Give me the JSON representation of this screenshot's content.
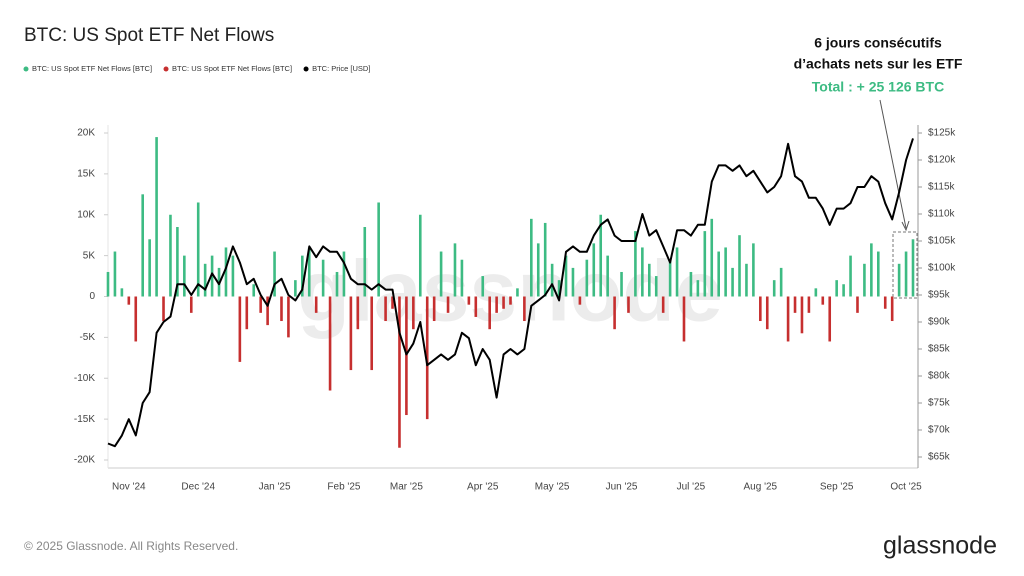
{
  "chart_data": {
    "type": "bar",
    "title": "BTC: US Spot ETF Net Flows",
    "annotation": [
      "6 jours consécutifs",
      "d’achats nets sur les ETF",
      "Total : + 25 126 BTC"
    ],
    "watermark": "glassnode",
    "footer": "© 2025 Glassnode. All Rights Reserved.",
    "logo": "glassnode",
    "legend_position": "top-left",
    "grid": false,
    "categories": [
      null,
      null,
      null,
      "Nov '24",
      null,
      null,
      null,
      null,
      null,
      null,
      null,
      null,
      null,
      "Dec '24",
      null,
      null,
      null,
      null,
      null,
      null,
      null,
      null,
      null,
      null,
      "Jan '25",
      null,
      null,
      null,
      null,
      null,
      null,
      null,
      null,
      null,
      "Feb '25",
      null,
      null,
      null,
      null,
      null,
      null,
      null,
      null,
      "Mar '25",
      null,
      null,
      null,
      null,
      null,
      null,
      null,
      null,
      null,
      null,
      "Apr '25",
      null,
      null,
      null,
      null,
      null,
      null,
      null,
      null,
      null,
      "May '25",
      null,
      null,
      null,
      null,
      null,
      null,
      null,
      null,
      null,
      "Jun '25",
      null,
      null,
      null,
      null,
      null,
      null,
      null,
      null,
      null,
      "Jul '25",
      null,
      null,
      null,
      null,
      null,
      null,
      null,
      null,
      null,
      "Aug '25",
      null,
      null,
      null,
      null,
      null,
      null,
      null,
      null,
      null,
      null,
      "Sep '25",
      null,
      null,
      null,
      null,
      null,
      null,
      null,
      null,
      null,
      "Oct '25",
      null
    ],
    "series": [
      {
        "name": "BTC: US Spot ETF Net Flows [BTC]",
        "color": "#3dbb83",
        "values": [
          3,
          5.5,
          1,
          null,
          null,
          12.5,
          7,
          19.5,
          null,
          10,
          8.5,
          5,
          null,
          11.5,
          4,
          5,
          3.5,
          6,
          5,
          null,
          null,
          1.5,
          null,
          null,
          5.5,
          null,
          null,
          2,
          5,
          6,
          null,
          4.5,
          null,
          3,
          5.5,
          null,
          null,
          8.5,
          null,
          11.5,
          null,
          null,
          null,
          null,
          null,
          10,
          null,
          null,
          5.5,
          null,
          6.5,
          4.5,
          null,
          null,
          2.5,
          null,
          null,
          null,
          null,
          1,
          null,
          9.5,
          6.5,
          9,
          4,
          2,
          5,
          3.5,
          null,
          4.5,
          6.5,
          10,
          5,
          null,
          3,
          null,
          8,
          6,
          4,
          2.5,
          null,
          4.5,
          6,
          null,
          3,
          2,
          8,
          9.5,
          5.5,
          6,
          3.5,
          7.5,
          4,
          6.5,
          null,
          null,
          2,
          3.5,
          null,
          null,
          null,
          null,
          1,
          null,
          null,
          2,
          1.5,
          5,
          null,
          4,
          6.5,
          5.5,
          null,
          null,
          4,
          5.5,
          7
        ]
      },
      {
        "name": "BTC: US Spot ETF Net Flows [BTC]",
        "color": "#c62f2f",
        "values": [
          null,
          null,
          null,
          -1,
          -5.5,
          null,
          null,
          null,
          -3,
          null,
          null,
          null,
          -2,
          null,
          null,
          null,
          null,
          null,
          null,
          -8,
          -4,
          null,
          -2,
          -3.5,
          null,
          -3,
          -5,
          null,
          null,
          null,
          -2,
          null,
          -11.5,
          null,
          null,
          -9,
          -4,
          null,
          -9,
          null,
          -3,
          -1.5,
          -18.5,
          -14.5,
          -4,
          null,
          -15,
          -3,
          null,
          -2,
          null,
          null,
          -1,
          -2.5,
          null,
          -4,
          -2,
          -1.5,
          -1,
          null,
          -3,
          null,
          null,
          null,
          null,
          null,
          null,
          null,
          -1,
          null,
          null,
          null,
          null,
          -4,
          null,
          -2,
          null,
          null,
          null,
          null,
          -2,
          null,
          null,
          -5.5,
          null,
          null,
          null,
          null,
          null,
          null,
          null,
          null,
          null,
          null,
          -3,
          -4,
          null,
          null,
          -5.5,
          -2,
          -4.5,
          -2,
          null,
          -1,
          -5.5,
          null,
          null,
          null,
          -2,
          null,
          null,
          null,
          -1.5,
          -3,
          null,
          null,
          null
        ]
      },
      {
        "name": "BTC: Price [USD]",
        "color": "#000000",
        "axis": "y2",
        "values": [
          67.5,
          67,
          69,
          72,
          69,
          75,
          77,
          88,
          90,
          91,
          97,
          97,
          95,
          97,
          96,
          99,
          97,
          100,
          104,
          101,
          97,
          98,
          95,
          93,
          97,
          98,
          95,
          94,
          96,
          104,
          102,
          104,
          103,
          103,
          101,
          98,
          97,
          97,
          96,
          97,
          96,
          96,
          88,
          84,
          86,
          90,
          82,
          83,
          84,
          83,
          84,
          88,
          87,
          82,
          85,
          83,
          76,
          84,
          85,
          84,
          85,
          93,
          94,
          95,
          97,
          94,
          103,
          104,
          103,
          103,
          106,
          108,
          109,
          106,
          105,
          105,
          105,
          110,
          106,
          107,
          104,
          101,
          107,
          107,
          106,
          108,
          108,
          116,
          119,
          119,
          118,
          119,
          117,
          118,
          116,
          114,
          115,
          117,
          123,
          117,
          116,
          113,
          113,
          111,
          108,
          111,
          111,
          112,
          115,
          115,
          117,
          116,
          112,
          109,
          114,
          120,
          124
        ]
      }
    ],
    "ylim": [
      -20,
      20
    ],
    "yticks": [
      {
        "value": -20,
        "label": "-20K"
      },
      {
        "value": -15,
        "label": "-15K"
      },
      {
        "value": -10,
        "label": "-10K"
      },
      {
        "value": -5,
        "label": "-5K"
      },
      0,
      {
        "value": 5,
        "label": "5K"
      },
      {
        "value": 10,
        "label": "10K"
      },
      {
        "value": 15,
        "label": "15K"
      },
      {
        "value": 20,
        "label": "20K"
      }
    ],
    "y2lim": [
      65,
      125
    ],
    "y2ticks": [
      {
        "value": 65,
        "label": "$65k"
      },
      {
        "value": 70,
        "label": "$70k"
      },
      {
        "value": 75,
        "label": "$75k"
      },
      {
        "value": 80,
        "label": "$80k"
      },
      {
        "value": 85,
        "label": "$85k"
      },
      {
        "value": 90,
        "label": "$90k"
      },
      {
        "value": 95,
        "label": "$95k"
      },
      {
        "value": 100,
        "label": "$100k"
      },
      {
        "value": 105,
        "label": "$105k"
      },
      {
        "value": 110,
        "label": "$110k"
      },
      {
        "value": 115,
        "label": "$115k"
      },
      {
        "value": 120,
        "label": "$120k"
      },
      {
        "value": 125,
        "label": "$125k"
      }
    ]
  }
}
